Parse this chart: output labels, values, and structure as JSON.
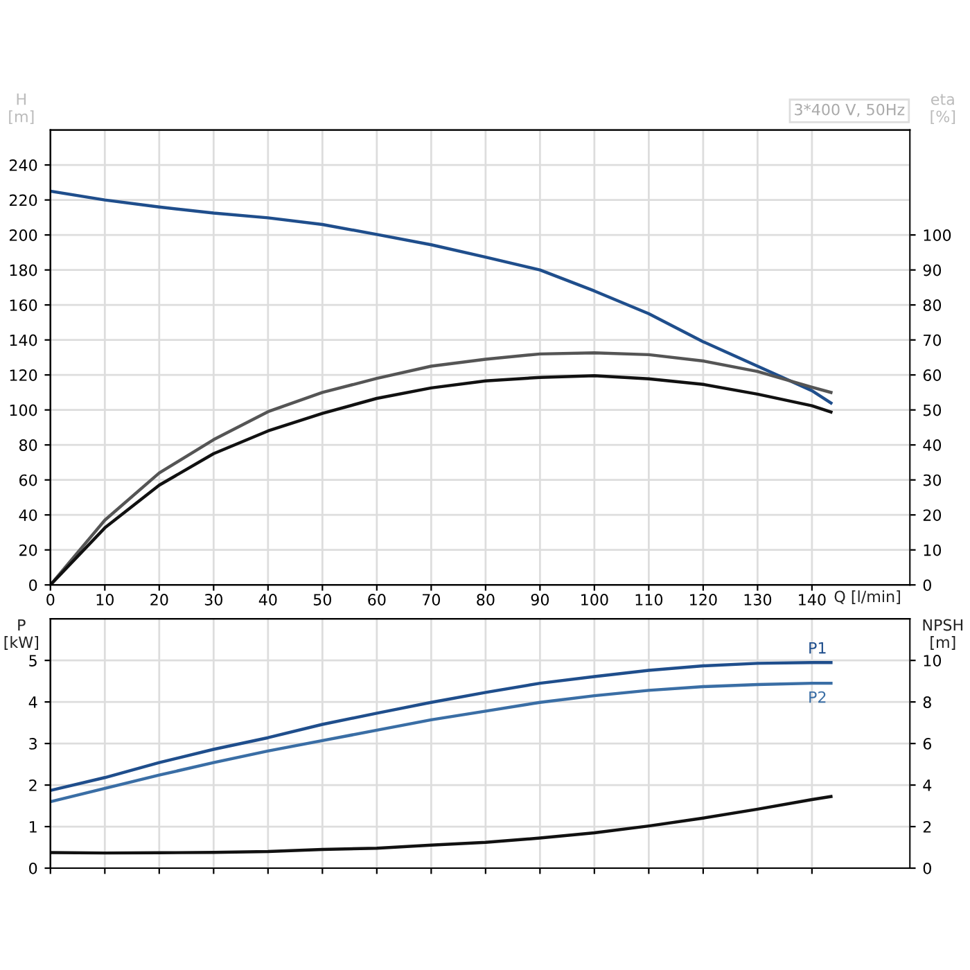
{
  "chart_data": [
    {
      "type": "line",
      "x": [
        0,
        10,
        20,
        30,
        40,
        50,
        60,
        70,
        80,
        90,
        100,
        110,
        120,
        130,
        140,
        143.5
      ],
      "series": [
        {
          "color": "#1f4e8c",
          "values": [
            225,
            220,
            216,
            212.5,
            209.8,
            206,
            200.3,
            194.4,
            187.3,
            180,
            168,
            155,
            139,
            125,
            111,
            104
          ]
        },
        {
          "color": "#555555",
          "axis": "y2",
          "values": [
            0,
            18.5,
            32,
            41.5,
            49.5,
            55,
            59,
            62.5,
            64.5,
            66,
            66.3,
            65.8,
            64,
            61,
            56.5,
            55
          ]
        },
        {
          "color": "#111111",
          "axis": "y2",
          "values": [
            0,
            16.3,
            28.5,
            37.5,
            44,
            49,
            53.3,
            56.3,
            58.3,
            59.3,
            59.8,
            58.9,
            57.3,
            54.5,
            51.2,
            49.4
          ]
        }
      ],
      "xlim": [
        0,
        158
      ],
      "xticks": [
        0,
        10,
        20,
        30,
        40,
        50,
        60,
        70,
        80,
        90,
        100,
        110,
        120,
        130,
        140
      ],
      "ylim": [
        0,
        260
      ],
      "yticks": [
        0,
        20,
        40,
        60,
        80,
        100,
        120,
        140,
        160,
        180,
        200,
        220,
        240
      ],
      "y2lim": [
        0,
        130
      ],
      "y2ticks": [
        0,
        10,
        20,
        30,
        40,
        50,
        60,
        70,
        80,
        90,
        100
      ],
      "xlabel": "Q [l/min]",
      "ylabel": "H [m]",
      "y2label": "eta [%]",
      "annotations": [
        "3*400 V, 50Hz"
      ],
      "grid": true,
      "legend": false
    },
    {
      "type": "line",
      "x": [
        0,
        10,
        20,
        30,
        40,
        50,
        60,
        70,
        80,
        90,
        100,
        110,
        120,
        130,
        140,
        143.5
      ],
      "series": [
        {
          "name": "P1",
          "color": "#1f4e8c",
          "values": [
            1.87,
            2.18,
            2.54,
            2.86,
            3.14,
            3.46,
            3.73,
            3.99,
            4.23,
            4.45,
            4.61,
            4.76,
            4.87,
            4.93,
            4.95,
            4.95
          ]
        },
        {
          "name": "P2",
          "color": "#3a6ea5",
          "values": [
            1.6,
            1.92,
            2.24,
            2.54,
            2.82,
            3.07,
            3.32,
            3.57,
            3.78,
            3.99,
            4.15,
            4.28,
            4.37,
            4.42,
            4.45,
            4.45
          ]
        },
        {
          "color": "#111111",
          "axis": "y2",
          "values": [
            0.75,
            0.73,
            0.74,
            0.76,
            0.8,
            0.9,
            0.96,
            1.11,
            1.24,
            1.45,
            1.7,
            2.03,
            2.41,
            2.84,
            3.3,
            3.45
          ]
        }
      ],
      "xlim": [
        0,
        158
      ],
      "xticks": [
        0,
        10,
        20,
        30,
        40,
        50,
        60,
        70,
        80,
        90,
        100,
        110,
        120,
        130,
        140
      ],
      "ylim": [
        0,
        6
      ],
      "yticks": [
        0,
        1,
        2,
        3,
        4,
        5
      ],
      "y2lim": [
        0,
        12
      ],
      "y2ticks": [
        0,
        2,
        4,
        6,
        8,
        10
      ],
      "ylabel": "P [kW]",
      "y2label": "NPSH [m]",
      "tick_labels": "y",
      "grid": true,
      "legend": false
    }
  ]
}
